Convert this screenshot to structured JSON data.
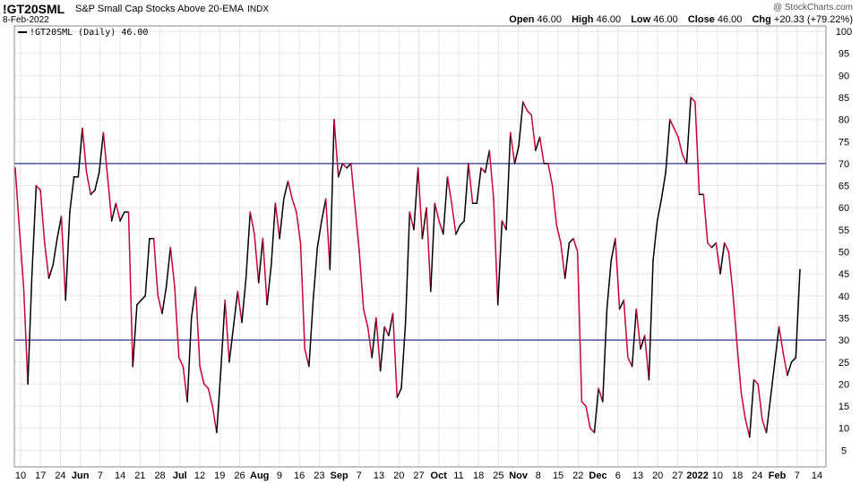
{
  "header": {
    "symbol": "!GT20SML",
    "description": "S&P Small Cap Stocks Above 20-EMA",
    "exchange": "INDX",
    "date": "8-Feb-2022",
    "watermark": "@ StockCharts.com",
    "open_label": "Open",
    "open_value": "46.00",
    "high_label": "High",
    "high_value": "46.00",
    "low_label": "Low",
    "low_value": "46.00",
    "close_label": "Close",
    "close_value": "46.00",
    "chg_label": "Chg",
    "chg_value": "+20.33 (+79.22%)"
  },
  "colors": {
    "up": "#000000",
    "down": "#cc0033",
    "ref": "#000080",
    "grid": "#e6e6e6"
  },
  "chart_data": {
    "type": "line",
    "legend": "!GT20SML (Daily) 46.00",
    "ylim": [
      0,
      100
    ],
    "y_ticks": [
      5,
      10,
      15,
      20,
      25,
      30,
      35,
      40,
      45,
      50,
      55,
      60,
      65,
      70,
      75,
      80,
      85,
      90,
      95,
      100
    ],
    "x_tick_labels": [
      {
        "label": "10",
        "bold": false
      },
      {
        "label": "17",
        "bold": false
      },
      {
        "label": "24",
        "bold": false
      },
      {
        "label": "Jun",
        "bold": true
      },
      {
        "label": "7",
        "bold": false
      },
      {
        "label": "14",
        "bold": false
      },
      {
        "label": "21",
        "bold": false
      },
      {
        "label": "28",
        "bold": false
      },
      {
        "label": "Jul",
        "bold": true
      },
      {
        "label": "12",
        "bold": false
      },
      {
        "label": "19",
        "bold": false
      },
      {
        "label": "26",
        "bold": false
      },
      {
        "label": "Aug",
        "bold": true
      },
      {
        "label": "9",
        "bold": false
      },
      {
        "label": "16",
        "bold": false
      },
      {
        "label": "23",
        "bold": false
      },
      {
        "label": "Sep",
        "bold": true
      },
      {
        "label": "7",
        "bold": false
      },
      {
        "label": "13",
        "bold": false
      },
      {
        "label": "20",
        "bold": false
      },
      {
        "label": "27",
        "bold": false
      },
      {
        "label": "Oct",
        "bold": true
      },
      {
        "label": "11",
        "bold": false
      },
      {
        "label": "18",
        "bold": false
      },
      {
        "label": "25",
        "bold": false
      },
      {
        "label": "Nov",
        "bold": true
      },
      {
        "label": "8",
        "bold": false
      },
      {
        "label": "15",
        "bold": false
      },
      {
        "label": "22",
        "bold": false
      },
      {
        "label": "Dec",
        "bold": true
      },
      {
        "label": "6",
        "bold": false
      },
      {
        "label": "13",
        "bold": false
      },
      {
        "label": "20",
        "bold": false
      },
      {
        "label": "27",
        "bold": false
      },
      {
        "label": "2022",
        "bold": true
      },
      {
        "label": "10",
        "bold": false
      },
      {
        "label": "18",
        "bold": false
      },
      {
        "label": "24",
        "bold": false
      },
      {
        "label": "Feb",
        "bold": true
      },
      {
        "label": "7",
        "bold": false
      },
      {
        "label": "14",
        "bold": false
      }
    ],
    "reference_lines": [
      30,
      70
    ],
    "values": [
      69,
      55,
      42,
      20,
      45,
      65,
      64,
      52,
      44,
      47,
      53,
      58,
      39,
      59,
      67,
      67,
      78,
      68,
      63,
      64,
      68,
      77,
      67,
      57,
      61,
      57,
      59,
      59,
      24,
      38,
      39,
      40,
      53,
      53,
      40,
      36,
      42,
      51,
      42,
      26,
      24,
      16,
      35,
      42,
      24,
      20,
      19,
      15,
      9,
      23,
      39,
      25,
      33,
      41,
      34,
      44,
      59,
      54,
      43,
      53,
      38,
      47,
      61,
      53,
      62,
      66,
      62,
      59,
      52,
      28,
      24,
      39,
      51,
      57,
      62,
      46,
      80,
      67,
      70,
      69,
      70,
      60,
      50,
      37,
      33,
      26,
      35,
      23,
      33,
      31,
      36,
      17,
      19,
      34,
      59,
      55,
      69,
      53,
      60,
      41,
      61,
      57,
      54,
      67,
      61,
      54,
      56,
      57,
      70,
      61,
      61,
      69,
      68,
      73,
      62,
      38,
      57,
      55,
      77,
      70,
      74,
      84,
      82,
      81,
      73,
      76,
      70,
      70,
      65,
      56,
      52,
      44,
      52,
      53,
      50,
      16,
      15,
      10,
      9,
      19,
      16,
      37,
      48,
      53,
      37,
      39,
      26,
      24,
      37,
      28,
      31,
      21,
      48,
      57,
      62,
      68,
      80,
      78,
      76,
      72,
      70,
      85,
      84,
      63,
      63,
      52,
      51,
      52,
      45,
      52,
      50,
      41,
      29,
      18,
      12,
      8,
      21,
      20,
      12,
      9,
      17,
      25,
      33,
      27,
      22,
      25,
      26,
      46
    ]
  }
}
